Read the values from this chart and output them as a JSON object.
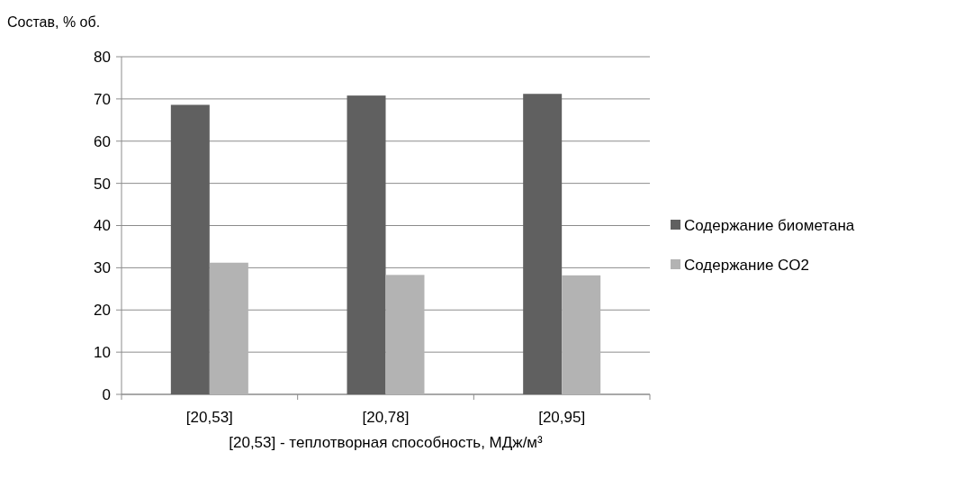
{
  "chart_data": {
    "type": "bar",
    "ylabel": "Состав, % об.",
    "xlabel": "[20,53] - теплотворная способность, МДж/м³",
    "categories": [
      "[20,53]",
      "[20,78]",
      "[20,95]"
    ],
    "series": [
      {
        "name": "Содержание биометана",
        "color": "#606060",
        "values": [
          68.6,
          70.8,
          71.2
        ]
      },
      {
        "name": "Содержание CO2",
        "color": "#b3b3b3",
        "values": [
          31.2,
          28.3,
          28.2
        ]
      }
    ],
    "ylim": [
      0,
      80
    ],
    "yticks": [
      0,
      10,
      20,
      30,
      40,
      50,
      60,
      70,
      80
    ],
    "grid": "y",
    "legend": "right"
  }
}
